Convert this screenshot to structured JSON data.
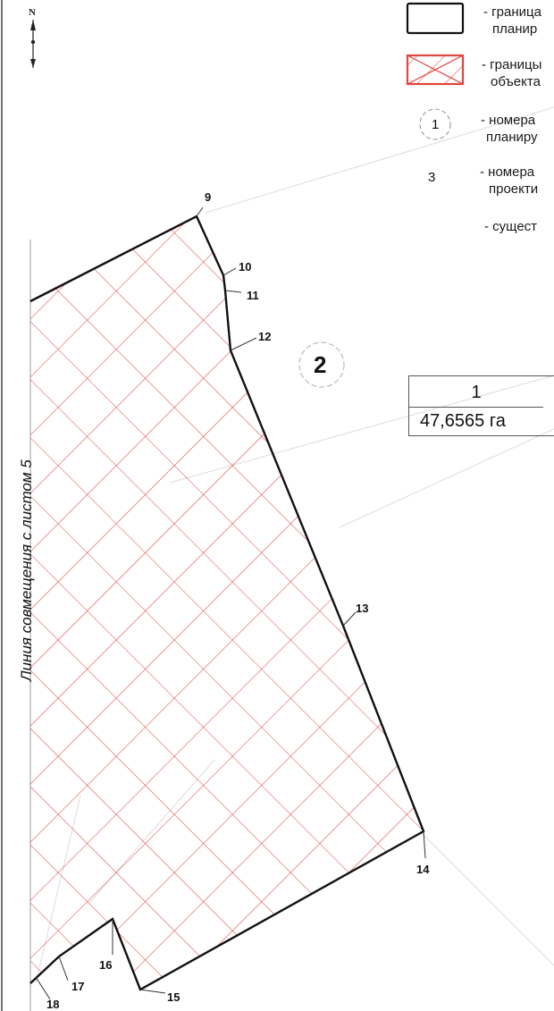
{
  "north": {
    "letter": "N"
  },
  "legend": {
    "items": [
      {
        "text_line1": "- граница",
        "text_line2": "планир"
      },
      {
        "text_line1": "- границы",
        "text_line2": "объекта"
      },
      {
        "symbol": "1",
        "text_line1": "- номера",
        "text_line2": "планиру"
      },
      {
        "symbol": "3",
        "text_line1": "- номера",
        "text_line2": "проекти"
      },
      {
        "text_line1": "- сущест"
      }
    ]
  },
  "alignment_line_label": "Линия совмещения с листом 5",
  "zone_label": "2",
  "parcel": {
    "number": "1",
    "area": "47,6565 га"
  },
  "points": [
    "9",
    "10",
    "11",
    "12",
    "13",
    "14",
    "15",
    "16",
    "17",
    "18"
  ],
  "colors": {
    "hatch": "#e0453e",
    "boundary": "#111111",
    "faint": "#d8d8d8"
  }
}
